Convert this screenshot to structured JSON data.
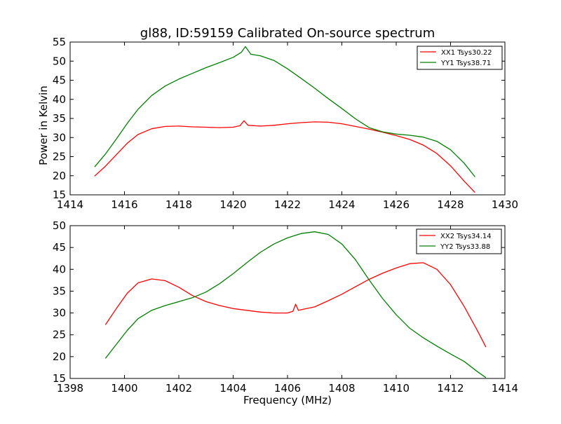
{
  "figure": {
    "title": "gl88, ID:59159 Calibrated On-source spectrum",
    "xlabel": "Frequency (MHz)"
  },
  "colors": {
    "red": "#ff0000",
    "green": "#008000",
    "frame": "#000000"
  },
  "chart_data": [
    {
      "type": "line",
      "title": "gl88, ID:59159 Calibrated On-source spectrum",
      "xlabel": "",
      "ylabel": "Power in Kelvin",
      "xlim": [
        1414,
        1430
      ],
      "ylim": [
        15,
        55
      ],
      "xticks": [
        "1414",
        "1416",
        "1418",
        "1420",
        "1422",
        "1424",
        "1426",
        "1428",
        "1430"
      ],
      "yticks": [
        "15",
        "20",
        "25",
        "30",
        "35",
        "40",
        "45",
        "50",
        "55"
      ],
      "grid": false,
      "legend_position": "top-right",
      "series": [
        {
          "name": "XX1 Tsys30.22",
          "color": "#ff0000",
          "points": [
            [
              1414.9,
              19.9
            ],
            [
              1415.3,
              22.5
            ],
            [
              1415.7,
              25.5
            ],
            [
              1416.1,
              28.5
            ],
            [
              1416.5,
              30.8
            ],
            [
              1417.0,
              32.3
            ],
            [
              1417.5,
              32.9
            ],
            [
              1418.0,
              33.0
            ],
            [
              1418.5,
              32.8
            ],
            [
              1419.0,
              32.7
            ],
            [
              1419.5,
              32.6
            ],
            [
              1420.0,
              32.7
            ],
            [
              1420.25,
              33.1
            ],
            [
              1420.4,
              34.4
            ],
            [
              1420.55,
              33.2
            ],
            [
              1421.0,
              33.0
            ],
            [
              1421.5,
              33.2
            ],
            [
              1422.0,
              33.6
            ],
            [
              1422.5,
              33.9
            ],
            [
              1423.0,
              34.1
            ],
            [
              1423.5,
              34.0
            ],
            [
              1424.0,
              33.6
            ],
            [
              1424.5,
              32.9
            ],
            [
              1425.0,
              32.2
            ],
            [
              1425.5,
              31.4
            ],
            [
              1426.0,
              30.5
            ],
            [
              1426.5,
              29.5
            ],
            [
              1427.0,
              28.0
            ],
            [
              1427.5,
              25.8
            ],
            [
              1428.0,
              22.6
            ],
            [
              1428.5,
              18.6
            ],
            [
              1428.9,
              15.6
            ]
          ]
        },
        {
          "name": "YY1 Tsys38.71",
          "color": "#008000",
          "points": [
            [
              1414.9,
              22.3
            ],
            [
              1415.3,
              25.7
            ],
            [
              1415.7,
              29.6
            ],
            [
              1416.1,
              33.7
            ],
            [
              1416.5,
              37.4
            ],
            [
              1417.0,
              41.0
            ],
            [
              1417.5,
              43.5
            ],
            [
              1418.0,
              45.3
            ],
            [
              1418.5,
              46.8
            ],
            [
              1419.0,
              48.3
            ],
            [
              1419.5,
              49.6
            ],
            [
              1420.0,
              51.0
            ],
            [
              1420.3,
              52.3
            ],
            [
              1420.45,
              53.8
            ],
            [
              1420.65,
              51.8
            ],
            [
              1421.0,
              51.4
            ],
            [
              1421.5,
              50.2
            ],
            [
              1422.0,
              48.0
            ],
            [
              1422.5,
              45.5
            ],
            [
              1423.0,
              42.9
            ],
            [
              1423.5,
              40.2
            ],
            [
              1424.0,
              37.6
            ],
            [
              1424.5,
              34.9
            ],
            [
              1425.0,
              32.6
            ],
            [
              1425.5,
              31.5
            ],
            [
              1426.0,
              30.9
            ],
            [
              1426.5,
              30.6
            ],
            [
              1427.0,
              30.1
            ],
            [
              1427.5,
              29.0
            ],
            [
              1428.0,
              26.8
            ],
            [
              1428.5,
              23.3
            ],
            [
              1428.9,
              19.7
            ]
          ]
        }
      ]
    },
    {
      "type": "line",
      "title": "",
      "xlabel": "Frequency (MHz)",
      "ylabel": "",
      "xlim": [
        1398,
        1414
      ],
      "ylim": [
        15,
        50
      ],
      "xticks": [
        "1398",
        "1400",
        "1402",
        "1404",
        "1406",
        "1408",
        "1410",
        "1412",
        "1414"
      ],
      "yticks": [
        "15",
        "20",
        "25",
        "30",
        "35",
        "40",
        "45",
        "50"
      ],
      "grid": false,
      "legend_position": "top-right",
      "series": [
        {
          "name": "XX2 Tsys34.14",
          "color": "#ff0000",
          "points": [
            [
              1399.3,
              27.3
            ],
            [
              1399.7,
              31.0
            ],
            [
              1400.1,
              34.5
            ],
            [
              1400.5,
              36.9
            ],
            [
              1401.0,
              37.8
            ],
            [
              1401.5,
              37.4
            ],
            [
              1402.0,
              35.9
            ],
            [
              1402.5,
              34.0
            ],
            [
              1403.0,
              32.6
            ],
            [
              1403.5,
              31.7
            ],
            [
              1404.0,
              31.0
            ],
            [
              1404.5,
              30.6
            ],
            [
              1405.0,
              30.2
            ],
            [
              1405.5,
              30.0
            ],
            [
              1406.0,
              30.0
            ],
            [
              1406.2,
              30.4
            ],
            [
              1406.3,
              32.0
            ],
            [
              1406.4,
              30.6
            ],
            [
              1407.0,
              31.4
            ],
            [
              1407.5,
              32.8
            ],
            [
              1408.0,
              34.3
            ],
            [
              1408.5,
              36.0
            ],
            [
              1409.0,
              37.7
            ],
            [
              1409.5,
              39.1
            ],
            [
              1410.0,
              40.3
            ],
            [
              1410.5,
              41.3
            ],
            [
              1411.0,
              41.5
            ],
            [
              1411.5,
              40.0
            ],
            [
              1412.0,
              36.5
            ],
            [
              1412.5,
              31.5
            ],
            [
              1413.0,
              25.8
            ],
            [
              1413.3,
              22.2
            ]
          ]
        },
        {
          "name": "YY2 Tsys33.88",
          "color": "#008000",
          "points": [
            [
              1399.3,
              19.6
            ],
            [
              1399.7,
              22.8
            ],
            [
              1400.1,
              26.0
            ],
            [
              1400.5,
              28.7
            ],
            [
              1401.0,
              30.6
            ],
            [
              1401.5,
              31.7
            ],
            [
              1402.0,
              32.6
            ],
            [
              1402.5,
              33.5
            ],
            [
              1403.0,
              34.8
            ],
            [
              1403.5,
              36.7
            ],
            [
              1404.0,
              39.0
            ],
            [
              1404.5,
              41.5
            ],
            [
              1405.0,
              43.9
            ],
            [
              1405.5,
              45.8
            ],
            [
              1406.0,
              47.2
            ],
            [
              1406.5,
              48.2
            ],
            [
              1407.0,
              48.6
            ],
            [
              1407.5,
              48.0
            ],
            [
              1408.0,
              45.8
            ],
            [
              1408.5,
              42.2
            ],
            [
              1409.0,
              37.6
            ],
            [
              1409.5,
              33.3
            ],
            [
              1410.0,
              29.6
            ],
            [
              1410.5,
              26.5
            ],
            [
              1411.0,
              24.3
            ],
            [
              1411.5,
              22.4
            ],
            [
              1412.0,
              20.6
            ],
            [
              1412.5,
              18.9
            ],
            [
              1413.0,
              16.5
            ],
            [
              1413.3,
              15.2
            ]
          ]
        }
      ]
    }
  ]
}
